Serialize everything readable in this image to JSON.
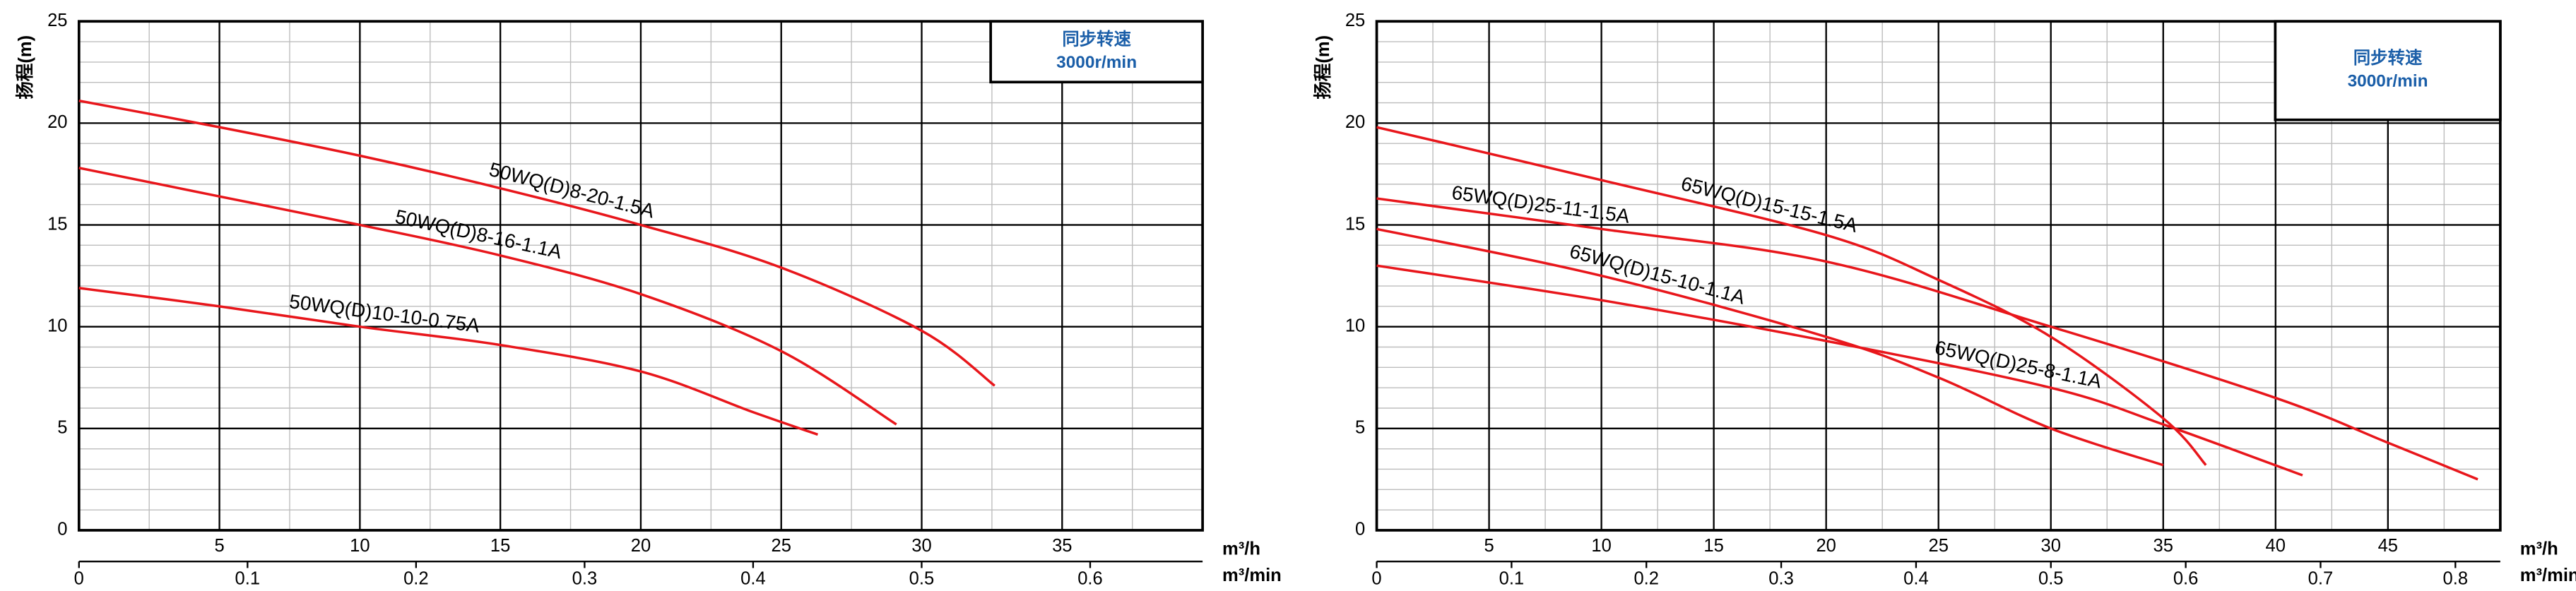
{
  "chart_data": [
    {
      "type": "line",
      "ylabel": "扬程(m)",
      "xlabel": "m³/h",
      "x2label": "m³/min",
      "box": [
        "同步转速",
        "3000r/min"
      ],
      "xlim": [
        0,
        40
      ],
      "xticks": [
        5,
        10,
        15,
        20,
        25,
        30,
        35
      ],
      "minor_xticks": [
        2.5,
        7.5,
        12.5,
        17.5,
        22.5,
        27.5,
        32.5,
        37.5
      ],
      "ylim": [
        0,
        25
      ],
      "yticks": [
        0,
        5,
        10,
        15,
        20,
        25
      ],
      "minor_yticks": [
        1,
        2,
        3,
        4,
        6,
        7,
        8,
        9,
        11,
        12,
        13,
        14,
        16,
        17,
        18,
        19,
        21,
        22,
        23,
        24
      ],
      "x2lim": [
        0,
        0.6667
      ],
      "x2ticks": [
        0,
        0.1,
        0.2,
        0.3,
        0.4,
        0.5,
        0.6
      ],
      "grid": true,
      "series": [
        {
          "name": "50WQ(D)8-20-1.5A",
          "color": "#e8161b",
          "x": [
            0,
            5,
            10,
            15,
            20,
            25,
            30,
            32.6
          ],
          "values": [
            21.1,
            19.8,
            18.4,
            16.8,
            15,
            12.9,
            9.8,
            7.1
          ]
        },
        {
          "name": "50WQ(D)8-16-1.1A",
          "color": "#e8161b",
          "x": [
            0,
            5,
            10,
            15,
            20,
            25,
            29.1
          ],
          "values": [
            17.8,
            16.4,
            15,
            13.5,
            11.6,
            8.8,
            5.2
          ]
        },
        {
          "name": "50WQ(D)10-10-0.75A",
          "color": "#e8161b",
          "x": [
            0,
            5,
            10,
            15,
            20,
            24,
            26.3
          ],
          "values": [
            11.9,
            11,
            10,
            9.1,
            7.8,
            5.8,
            4.7
          ]
        }
      ]
    },
    {
      "type": "line",
      "ylabel": "扬程(m)",
      "xlabel": "m³/h",
      "x2label": "m³/min",
      "box": [
        "同步转速",
        "3000r/min"
      ],
      "xlim": [
        0,
        50
      ],
      "xticks": [
        5,
        10,
        15,
        20,
        25,
        30,
        35,
        40,
        45
      ],
      "minor_xticks": [
        2.5,
        7.5,
        12.5,
        17.5,
        22.5,
        27.5,
        32.5,
        37.5,
        42.5,
        47.5
      ],
      "ylim": [
        0,
        25
      ],
      "yticks": [
        0,
        5,
        10,
        15,
        20,
        25
      ],
      "minor_yticks": [
        1,
        2,
        3,
        4,
        6,
        7,
        8,
        9,
        11,
        12,
        13,
        14,
        16,
        17,
        18,
        19,
        21,
        22,
        23,
        24
      ],
      "x2lim": [
        0,
        0.8333
      ],
      "x2ticks": [
        0,
        0.1,
        0.2,
        0.3,
        0.4,
        0.5,
        0.6,
        0.7,
        0.8
      ],
      "grid": true,
      "series": [
        {
          "name": "65WQ(D)15-15-1.5A",
          "color": "#e8161b",
          "x": [
            0,
            10,
            20,
            25,
            30,
            35,
            36.9
          ],
          "values": [
            19.8,
            17.2,
            14.5,
            12.3,
            9.5,
            5.5,
            3.2
          ]
        },
        {
          "name": "65WQ(D)25-11-1.5A",
          "color": "#e8161b",
          "x": [
            0,
            10,
            20,
            30,
            40,
            45,
            49
          ],
          "values": [
            16.3,
            14.8,
            13.2,
            10,
            6.5,
            4.3,
            2.5
          ]
        },
        {
          "name": "65WQ(D)15-10-1.1A",
          "color": "#e8161b",
          "x": [
            0,
            10,
            20,
            25,
            30,
            35
          ],
          "values": [
            14.8,
            12.5,
            9.5,
            7.5,
            5,
            3.2
          ]
        },
        {
          "name": "65WQ(D)25-8-1.1A",
          "color": "#e8161b",
          "x": [
            0,
            10,
            20,
            30,
            35,
            41.2
          ],
          "values": [
            13,
            11.3,
            9.3,
            7,
            5.2,
            2.7
          ]
        }
      ]
    }
  ]
}
